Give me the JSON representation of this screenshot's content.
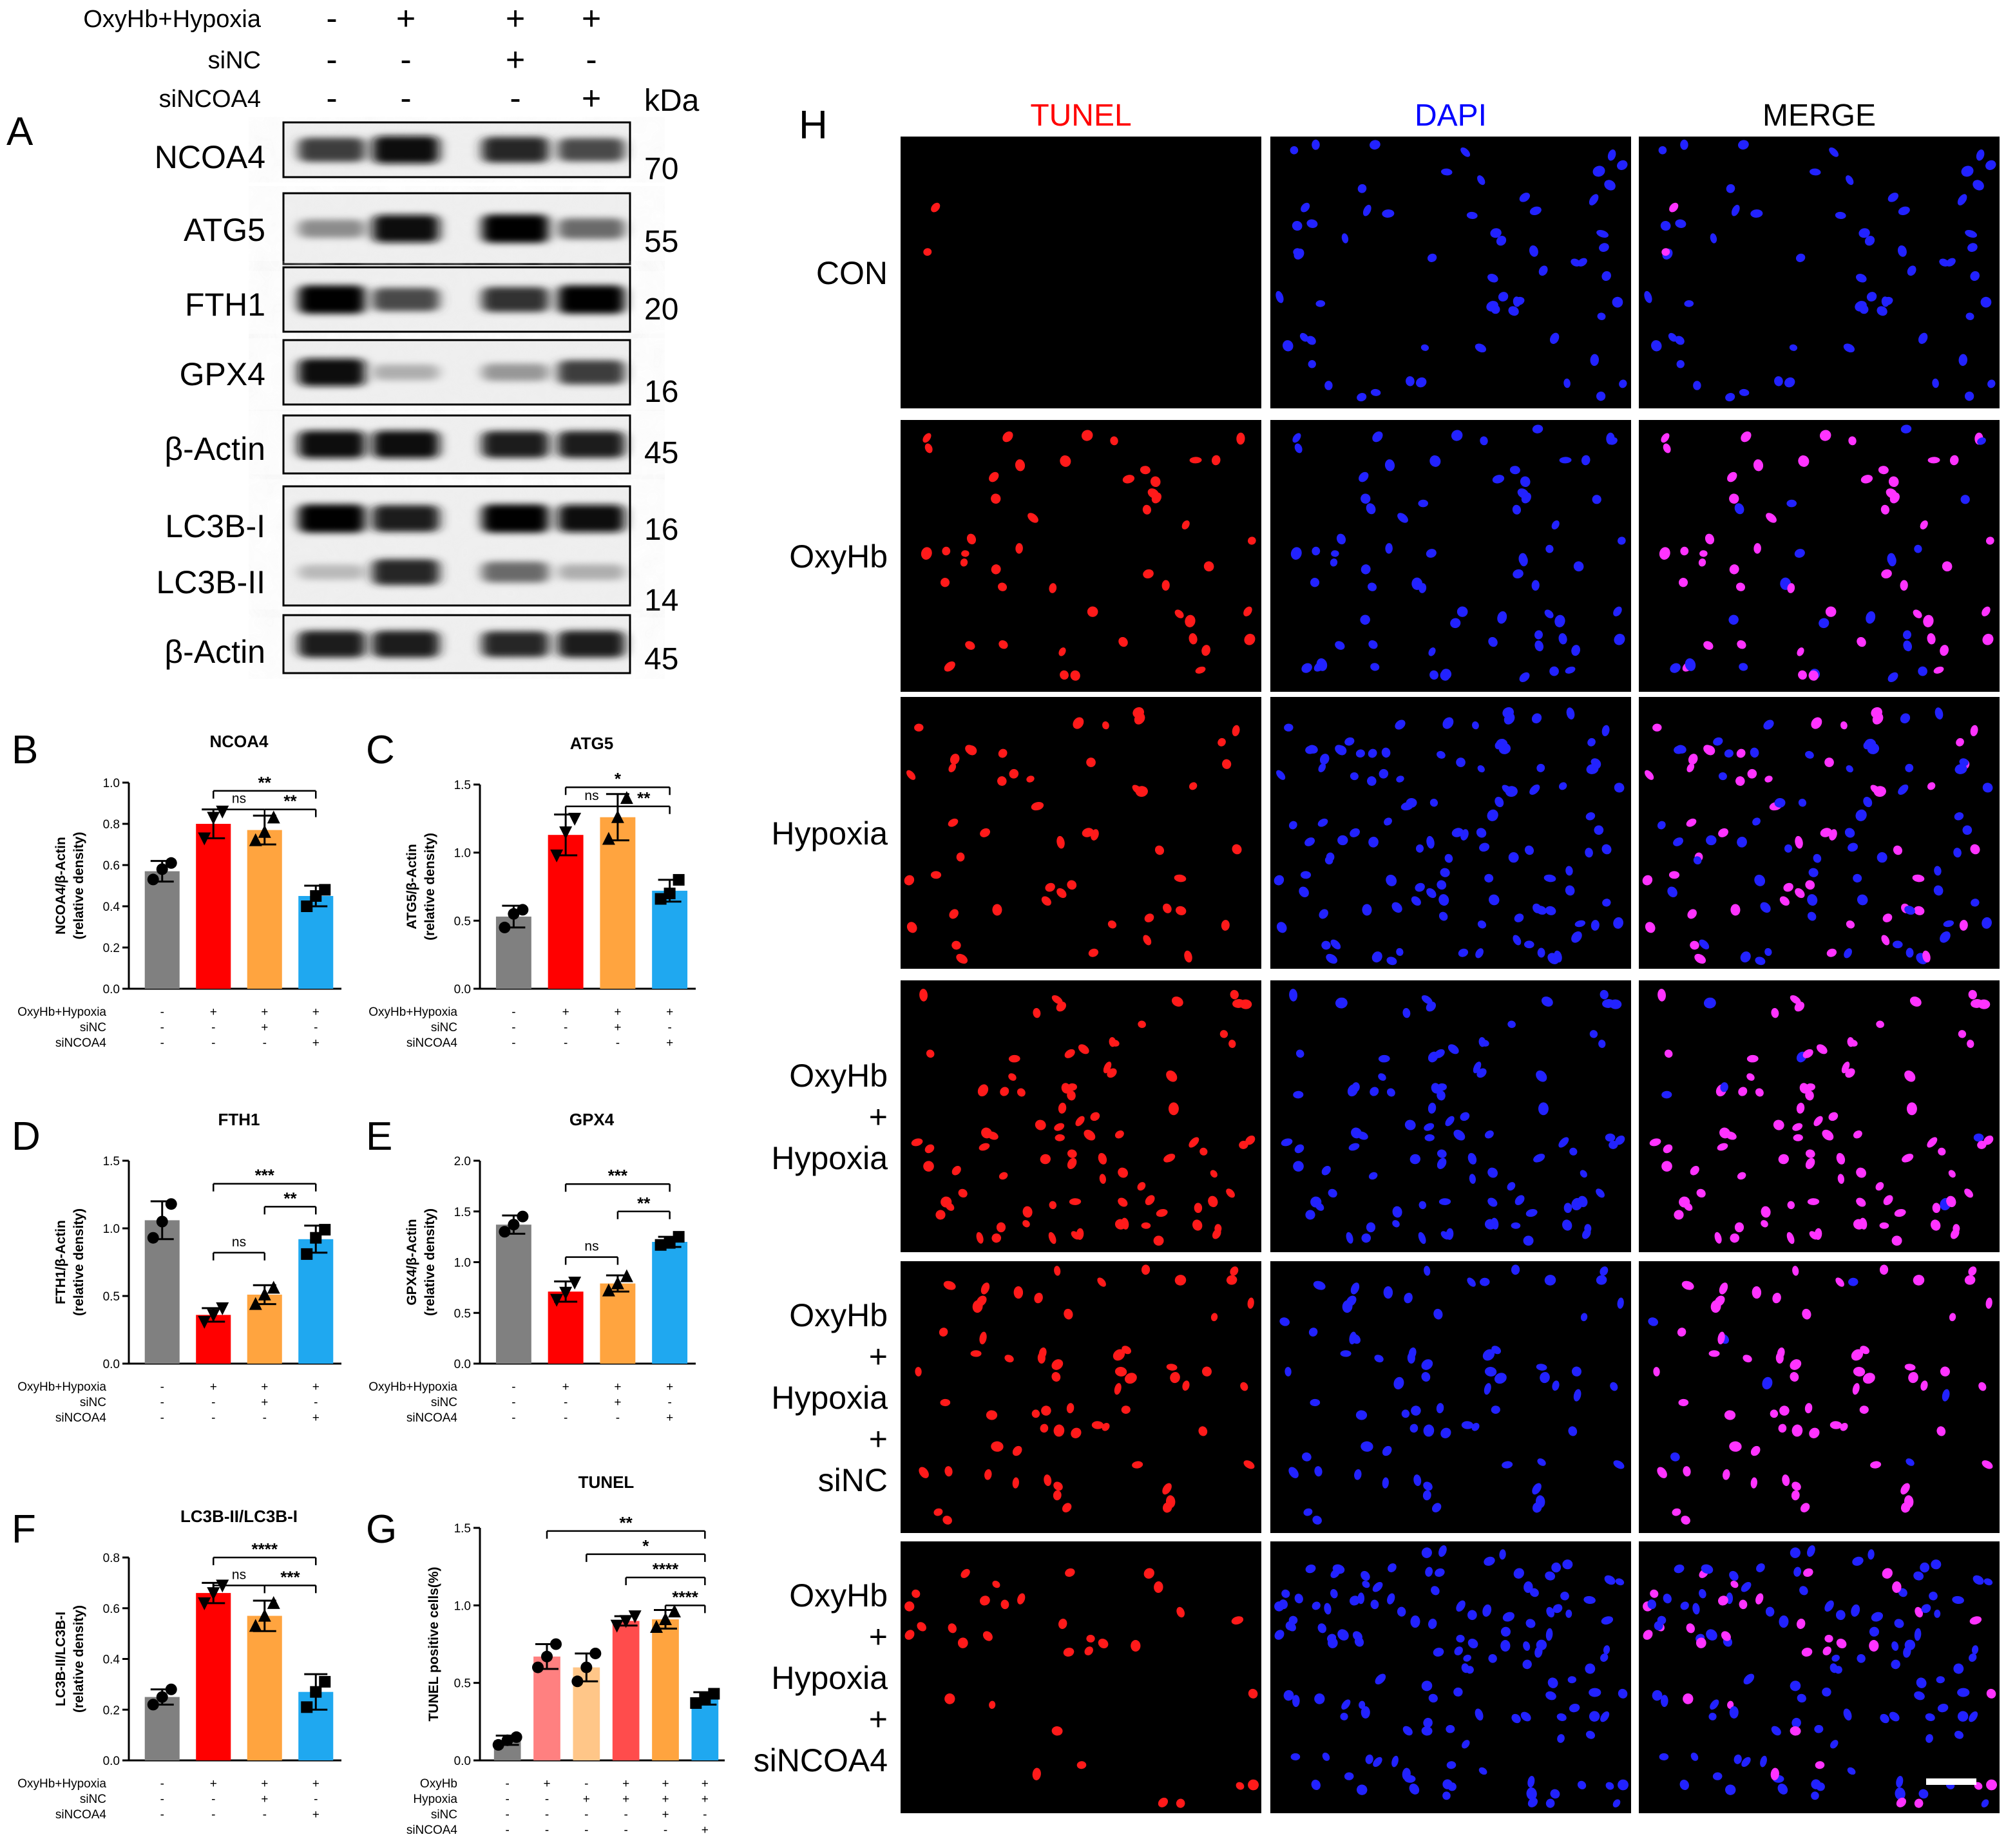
{
  "western_blot": {
    "panel_letter": "A",
    "condition_rows": [
      {
        "label": "OxyHb+Hypoxia",
        "signs": [
          "-",
          "+",
          "+",
          "+"
        ]
      },
      {
        "label": "siNC",
        "signs": [
          "-",
          "-",
          "+",
          "-"
        ]
      },
      {
        "label": "siNCOA4",
        "signs": [
          "-",
          "-",
          "-",
          "+"
        ]
      }
    ],
    "kda_header": "kDa",
    "blots": [
      {
        "proteins": [
          "NCOA4"
        ],
        "kda": [
          "70"
        ],
        "intensities": [
          [
            0.75,
            0.95,
            0.85,
            0.7
          ]
        ]
      },
      {
        "proteins": [
          "ATG5"
        ],
        "kda": [
          "55"
        ],
        "intensities": [
          [
            0.4,
            0.95,
            1.0,
            0.55
          ]
        ]
      },
      {
        "proteins": [
          "FTH1"
        ],
        "kda": [
          "20"
        ],
        "intensities": [
          [
            1.0,
            0.7,
            0.8,
            1.0
          ]
        ]
      },
      {
        "proteins": [
          "GPX4"
        ],
        "kda": [
          "16"
        ],
        "intensities": [
          [
            0.95,
            0.25,
            0.35,
            0.75
          ]
        ]
      },
      {
        "proteins": [
          "β-Actin"
        ],
        "kda": [
          "45"
        ],
        "intensities": [
          [
            0.95,
            0.95,
            0.9,
            0.9
          ]
        ]
      },
      {
        "proteins": [
          "LC3B-I",
          "LC3B-II"
        ],
        "kda": [
          "16",
          "14"
        ],
        "intensities": [
          [
            1.0,
            0.9,
            1.0,
            0.95
          ],
          [
            0.2,
            0.85,
            0.55,
            0.25
          ]
        ]
      },
      {
        "proteins": [
          "β-Actin"
        ],
        "kda": [
          "45"
        ],
        "intensities": [
          [
            0.9,
            0.9,
            0.85,
            0.9
          ]
        ]
      }
    ]
  },
  "chart_data": [
    {
      "panel": "B",
      "type": "bar",
      "title": "NCOA4",
      "ylabel_lines": [
        "NCOA4/β-Actin",
        "(relative density)"
      ],
      "ylim": [
        0,
        1.0
      ],
      "yticks": [
        "0.0",
        "0.2",
        "0.4",
        "0.6",
        "0.8",
        "1.0"
      ],
      "values": [
        0.57,
        0.8,
        0.77,
        0.45
      ],
      "errors": [
        0.05,
        0.07,
        0.07,
        0.05
      ],
      "points": [
        [
          0.53,
          0.58,
          0.61
        ],
        [
          0.73,
          0.83,
          0.86
        ],
        [
          0.72,
          0.76,
          0.83
        ],
        [
          0.4,
          0.45,
          0.48
        ]
      ],
      "colors": [
        "#808080",
        "#ff0000",
        "#ffa43f",
        "#1fa8f0"
      ],
      "markers": [
        "circle",
        "triangle-down",
        "triangle",
        "square"
      ],
      "xtable": [
        {
          "label": "OxyHb+Hypoxia",
          "signs": [
            "-",
            "+",
            "+",
            "+"
          ]
        },
        {
          "label": "siNC",
          "signs": [
            "-",
            "-",
            "+",
            "-"
          ]
        },
        {
          "label": "siNCOA4",
          "signs": [
            "-",
            "-",
            "-",
            "+"
          ]
        }
      ],
      "comparisons": [
        {
          "from": 1,
          "to": 2,
          "label": "ns",
          "y": 0.87
        },
        {
          "from": 2,
          "to": 3,
          "label": "**",
          "y": 0.87
        },
        {
          "from": 1,
          "to": 3,
          "label": "**",
          "y": 0.96
        }
      ]
    },
    {
      "panel": "C",
      "type": "bar",
      "title": "ATG5",
      "ylabel_lines": [
        "ATG5/β-Actin",
        "(relative density)"
      ],
      "ylim": [
        0,
        1.5
      ],
      "yticks": [
        "0.0",
        "0.5",
        "1.0",
        "1.5"
      ],
      "values": [
        0.53,
        1.13,
        1.26,
        0.72
      ],
      "errors": [
        0.08,
        0.15,
        0.17,
        0.08
      ],
      "points": [
        [
          0.45,
          0.55,
          0.58
        ],
        [
          0.98,
          1.15,
          1.25
        ],
        [
          1.1,
          1.26,
          1.4
        ],
        [
          0.66,
          0.7,
          0.8
        ]
      ],
      "colors": [
        "#808080",
        "#ff0000",
        "#ffa43f",
        "#1fa8f0"
      ],
      "markers": [
        "circle",
        "triangle-down",
        "triangle",
        "square"
      ],
      "xtable": [
        {
          "label": "OxyHb+Hypoxia",
          "signs": [
            "-",
            "+",
            "+",
            "+"
          ]
        },
        {
          "label": "siNC",
          "signs": [
            "-",
            "-",
            "+",
            "-"
          ]
        },
        {
          "label": "siNCOA4",
          "signs": [
            "-",
            "-",
            "-",
            "+"
          ]
        }
      ],
      "comparisons": [
        {
          "from": 1,
          "to": 2,
          "label": "ns",
          "y": 1.34
        },
        {
          "from": 2,
          "to": 3,
          "label": "**",
          "y": 1.34
        },
        {
          "from": 1,
          "to": 3,
          "label": "*",
          "y": 1.48
        }
      ]
    },
    {
      "panel": "D",
      "type": "bar",
      "title": "FTH1",
      "ylabel_lines": [
        "FTH1/β-Actin",
        "(relative density)"
      ],
      "ylim": [
        0,
        1.5
      ],
      "yticks": [
        "0.0",
        "0.5",
        "1.0",
        "1.5"
      ],
      "values": [
        1.06,
        0.36,
        0.51,
        0.92
      ],
      "errors": [
        0.14,
        0.05,
        0.07,
        0.1
      ],
      "points": [
        [
          0.93,
          1.05,
          1.18
        ],
        [
          0.31,
          0.36,
          0.41
        ],
        [
          0.44,
          0.51,
          0.56
        ],
        [
          0.81,
          0.93,
          0.99
        ]
      ],
      "colors": [
        "#808080",
        "#ff0000",
        "#ffa43f",
        "#1fa8f0"
      ],
      "markers": [
        "circle",
        "triangle-down",
        "triangle",
        "square"
      ],
      "xtable": [
        {
          "label": "OxyHb+Hypoxia",
          "signs": [
            "-",
            "+",
            "+",
            "+"
          ]
        },
        {
          "label": "siNC",
          "signs": [
            "-",
            "-",
            "+",
            "-"
          ]
        },
        {
          "label": "siNCOA4",
          "signs": [
            "-",
            "-",
            "-",
            "+"
          ]
        }
      ],
      "comparisons": [
        {
          "from": 1,
          "to": 2,
          "label": "ns",
          "y": 0.82
        },
        {
          "from": 2,
          "to": 3,
          "label": "**",
          "y": 1.16
        },
        {
          "from": 1,
          "to": 3,
          "label": "***",
          "y": 1.33
        }
      ]
    },
    {
      "panel": "E",
      "type": "bar",
      "title": "GPX4",
      "ylabel_lines": [
        "GPX4/β-Actin",
        "(relative density)"
      ],
      "ylim": [
        0,
        2.0
      ],
      "yticks": [
        "0.0",
        "0.5",
        "1.0",
        "1.5",
        "2.0"
      ],
      "values": [
        1.37,
        0.71,
        0.79,
        1.2
      ],
      "errors": [
        0.09,
        0.1,
        0.08,
        0.05
      ],
      "points": [
        [
          1.3,
          1.37,
          1.45
        ],
        [
          0.63,
          0.7,
          0.8
        ],
        [
          0.72,
          0.79,
          0.86
        ],
        [
          1.17,
          1.19,
          1.25
        ]
      ],
      "colors": [
        "#808080",
        "#ff0000",
        "#ffa43f",
        "#1fa8f0"
      ],
      "markers": [
        "circle",
        "triangle-down",
        "triangle",
        "square"
      ],
      "xtable": [
        {
          "label": "OxyHb+Hypoxia",
          "signs": [
            "-",
            "+",
            "+",
            "+"
          ]
        },
        {
          "label": "siNC",
          "signs": [
            "-",
            "-",
            "+",
            "-"
          ]
        },
        {
          "label": "siNCOA4",
          "signs": [
            "-",
            "-",
            "-",
            "+"
          ]
        }
      ],
      "comparisons": [
        {
          "from": 1,
          "to": 2,
          "label": "ns",
          "y": 1.05
        },
        {
          "from": 2,
          "to": 3,
          "label": "**",
          "y": 1.5
        },
        {
          "from": 1,
          "to": 3,
          "label": "***",
          "y": 1.77
        }
      ]
    },
    {
      "panel": "F",
      "type": "bar",
      "title": "LC3B-II/LC3B-I",
      "ylabel_lines": [
        "LC3B-II/LC3B-I",
        "(relative density)"
      ],
      "ylim": [
        0,
        0.8
      ],
      "yticks": [
        "0.0",
        "0.2",
        "0.4",
        "0.6",
        "0.8"
      ],
      "values": [
        0.25,
        0.66,
        0.57,
        0.27
      ],
      "errors": [
        0.03,
        0.04,
        0.06,
        0.07
      ],
      "points": [
        [
          0.22,
          0.25,
          0.28
        ],
        [
          0.62,
          0.66,
          0.69
        ],
        [
          0.53,
          0.57,
          0.62
        ],
        [
          0.21,
          0.27,
          0.31
        ]
      ],
      "colors": [
        "#808080",
        "#ff0000",
        "#ffa43f",
        "#1fa8f0"
      ],
      "markers": [
        "circle",
        "triangle-down",
        "triangle",
        "square"
      ],
      "xtable": [
        {
          "label": "OxyHb+Hypoxia",
          "signs": [
            "-",
            "+",
            "+",
            "+"
          ]
        },
        {
          "label": "siNC",
          "signs": [
            "-",
            "-",
            "+",
            "-"
          ]
        },
        {
          "label": "siNCOA4",
          "signs": [
            "-",
            "-",
            "-",
            "+"
          ]
        }
      ],
      "comparisons": [
        {
          "from": 1,
          "to": 2,
          "label": "ns",
          "y": 0.69
        },
        {
          "from": 2,
          "to": 3,
          "label": "***",
          "y": 0.69
        },
        {
          "from": 1,
          "to": 3,
          "label": "****",
          "y": 0.8
        }
      ]
    },
    {
      "panel": "G",
      "type": "bar",
      "title": "TUNEL",
      "ylabel_lines": [
        "TUNEL positive cells(%)"
      ],
      "ylim": [
        0,
        1.5
      ],
      "yticks": [
        "0.0",
        "0.5",
        "1.0",
        "1.5"
      ],
      "values": [
        0.13,
        0.67,
        0.6,
        0.9,
        0.91,
        0.4
      ],
      "errors": [
        0.03,
        0.08,
        0.09,
        0.03,
        0.06,
        0.04
      ],
      "points": [
        [
          0.1,
          0.13,
          0.15
        ],
        [
          0.6,
          0.67,
          0.75
        ],
        [
          0.51,
          0.6,
          0.69
        ],
        [
          0.87,
          0.9,
          0.93
        ],
        [
          0.86,
          0.91,
          0.96
        ],
        [
          0.37,
          0.4,
          0.43
        ]
      ],
      "colors": [
        "#808080",
        "#ff8080",
        "#ffc688",
        "#ff4c4c",
        "#ffa43f",
        "#1fa8f0"
      ],
      "markers": [
        "circle",
        "circle",
        "circle",
        "triangle-down",
        "triangle",
        "square"
      ],
      "xtable": [
        {
          "label": "OxyHb",
          "signs": [
            "-",
            "+",
            "-",
            "+",
            "+",
            "+"
          ]
        },
        {
          "label": "Hypoxia",
          "signs": [
            "-",
            "-",
            "+",
            "+",
            "+",
            "+"
          ]
        },
        {
          "label": "siNC",
          "signs": [
            "-",
            "-",
            "-",
            "-",
            "+",
            "-"
          ]
        },
        {
          "label": "siNCOA4",
          "signs": [
            "-",
            "-",
            "-",
            "-",
            "-",
            "+"
          ]
        }
      ],
      "comparisons": [
        {
          "from": 4,
          "to": 5,
          "label": "****",
          "y": 1.0
        },
        {
          "from": 3,
          "to": 5,
          "label": "****",
          "y": 1.18
        },
        {
          "from": 2,
          "to": 5,
          "label": "*",
          "y": 1.33
        },
        {
          "from": 1,
          "to": 5,
          "label": "**",
          "y": 1.48
        }
      ]
    }
  ],
  "micrographs": {
    "panel_letter": "H",
    "columns": [
      {
        "label": "TUNEL",
        "color": "#ff0000"
      },
      {
        "label": "DAPI",
        "color": "#0000ff"
      },
      {
        "label": "MERGE",
        "color": "#000000"
      }
    ],
    "rows": [
      {
        "label_lines": [
          "CON"
        ],
        "tunel_fraction": 0.02,
        "cell_count": 60
      },
      {
        "label_lines": [
          "OxyHb"
        ],
        "tunel_fraction": 0.6,
        "cell_count": 70
      },
      {
        "label_lines": [
          "Hypoxia"
        ],
        "tunel_fraction": 0.45,
        "cell_count": 110
      },
      {
        "label_lines": [
          "OxyHb",
          "+",
          "Hypoxia"
        ],
        "tunel_fraction": 0.9,
        "cell_count": 90
      },
      {
        "label_lines": [
          "OxyHb",
          "+",
          "Hypoxia",
          "+",
          "siNC"
        ],
        "tunel_fraction": 0.9,
        "cell_count": 70
      },
      {
        "label_lines": [
          "OxyHb",
          "+",
          "Hypoxia",
          "+",
          "siNCOA4"
        ],
        "tunel_fraction": 0.25,
        "cell_count": 130
      }
    ]
  }
}
